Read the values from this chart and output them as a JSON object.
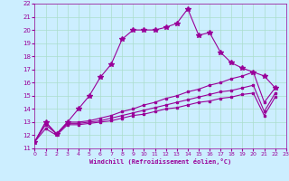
{
  "xlabel": "Windchill (Refroidissement éolien,°C)",
  "bg_color": "#cceeff",
  "line_color": "#990099",
  "grid_color": "#aaddcc",
  "xlim": [
    0,
    23
  ],
  "ylim": [
    11,
    22
  ],
  "xticks": [
    0,
    1,
    2,
    3,
    4,
    5,
    6,
    7,
    8,
    9,
    10,
    11,
    12,
    13,
    14,
    15,
    16,
    17,
    18,
    19,
    20,
    21,
    22,
    23
  ],
  "yticks": [
    11,
    12,
    13,
    14,
    15,
    16,
    17,
    18,
    19,
    20,
    21,
    22
  ],
  "series": [
    {
      "x": [
        0,
        1,
        2,
        3,
        4,
        5,
        6,
        7,
        8,
        9,
        10,
        11,
        12,
        13,
        14,
        15,
        16,
        17,
        18,
        19,
        20,
        21,
        22
      ],
      "y": [
        11.5,
        13.0,
        12.1,
        13.0,
        14.0,
        15.0,
        16.4,
        17.4,
        19.3,
        20.0,
        20.0,
        20.0,
        20.2,
        20.5,
        21.6,
        19.6,
        19.8,
        18.3,
        17.5,
        17.1,
        16.8,
        16.5,
        15.6
      ],
      "marker": "*",
      "ms": 4
    },
    {
      "x": [
        0,
        1,
        2,
        3,
        4,
        5,
        6,
        7,
        8,
        9,
        10,
        11,
        12,
        13,
        14,
        15,
        16,
        17,
        18,
        19,
        20,
        21,
        22
      ],
      "y": [
        11.5,
        13.0,
        12.1,
        13.0,
        13.0,
        13.1,
        13.3,
        13.5,
        13.8,
        14.0,
        14.3,
        14.5,
        14.8,
        15.0,
        15.3,
        15.5,
        15.8,
        16.0,
        16.3,
        16.5,
        16.8,
        14.5,
        15.6
      ],
      "marker": "s",
      "ms": 2
    },
    {
      "x": [
        0,
        1,
        2,
        3,
        4,
        5,
        6,
        7,
        8,
        9,
        10,
        11,
        12,
        13,
        14,
        15,
        16,
        17,
        18,
        19,
        20,
        21,
        22
      ],
      "y": [
        11.5,
        12.8,
        12.1,
        12.9,
        12.9,
        13.0,
        13.1,
        13.3,
        13.5,
        13.7,
        13.9,
        14.1,
        14.3,
        14.5,
        14.7,
        14.9,
        15.1,
        15.3,
        15.4,
        15.6,
        15.8,
        13.8,
        15.2
      ],
      "marker": "s",
      "ms": 2
    },
    {
      "x": [
        0,
        1,
        2,
        3,
        4,
        5,
        6,
        7,
        8,
        9,
        10,
        11,
        12,
        13,
        14,
        15,
        16,
        17,
        18,
        19,
        20,
        21,
        22
      ],
      "y": [
        11.5,
        12.5,
        12.0,
        12.8,
        12.8,
        12.9,
        13.0,
        13.1,
        13.3,
        13.5,
        13.6,
        13.8,
        14.0,
        14.1,
        14.3,
        14.5,
        14.6,
        14.8,
        14.9,
        15.1,
        15.2,
        13.5,
        14.9
      ],
      "marker": "s",
      "ms": 2
    }
  ]
}
